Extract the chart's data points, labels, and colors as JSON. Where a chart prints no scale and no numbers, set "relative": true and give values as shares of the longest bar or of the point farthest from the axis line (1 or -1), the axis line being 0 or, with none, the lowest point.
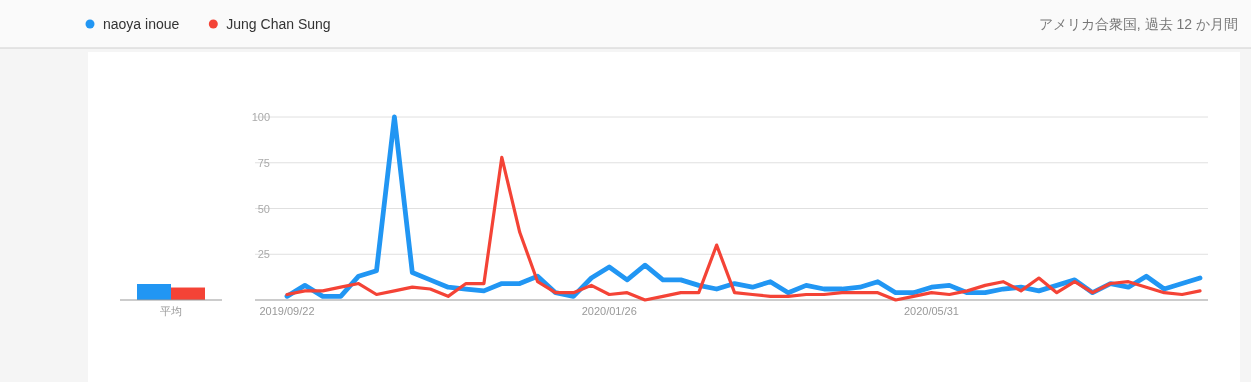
{
  "chart_data": [
    {
      "type": "bar",
      "relative": true,
      "categories": [
        "平均"
      ],
      "series": [
        {
          "color": "#2196f3",
          "values": [
            1
          ]
        },
        {
          "color": "#f44336",
          "values": [
            0.78
          ]
        }
      ]
    },
    {
      "type": "line",
      "legend": "top left",
      "grid": "y",
      "marker": "none",
      "line_style": "solid",
      "annotations": [
        "アメリカ合衆国, 過去 12 か月間"
      ],
      "categories": [
        "2019/09/22",
        null,
        null,
        null,
        null,
        null,
        null,
        null,
        null,
        null,
        null,
        null,
        null,
        null,
        null,
        null,
        null,
        null,
        "2020/01/26",
        null,
        null,
        null,
        null,
        null,
        null,
        null,
        null,
        null,
        null,
        null,
        null,
        null,
        null,
        null,
        null,
        null,
        "2020/05/31",
        null,
        null,
        null,
        null,
        null,
        null,
        null,
        null,
        null,
        null,
        null,
        null,
        null,
        null,
        null
      ],
      "ylim": [
        0,
        100
      ],
      "yticks": [
        {
          "value": 0,
          "label": null
        },
        25,
        50,
        75,
        100
      ],
      "series": [
        {
          "name": "naoya inoue",
          "color": "#2196f3",
          "values": [
            2,
            8,
            2,
            2,
            13,
            16,
            100,
            15,
            11,
            7,
            6,
            5,
            9,
            9,
            13,
            4,
            2,
            12,
            18,
            11,
            19,
            11,
            11,
            8,
            6,
            9,
            7,
            10,
            4,
            8,
            6,
            6,
            7,
            10,
            4,
            4,
            7,
            8,
            4,
            4,
            6,
            7,
            5,
            8,
            11,
            4,
            9,
            7,
            13,
            6,
            9,
            12
          ]
        },
        {
          "name": "Jung Chan Sung",
          "color": "#f44336",
          "values": [
            3,
            5,
            5,
            7,
            9,
            3,
            5,
            7,
            6,
            2,
            9,
            9,
            78,
            37,
            10,
            4,
            4,
            8,
            3,
            4,
            0,
            2,
            4,
            4,
            30,
            4,
            3,
            2,
            2,
            3,
            3,
            4,
            4,
            4,
            0,
            2,
            4,
            3,
            5,
            8,
            10,
            5,
            12,
            4,
            10,
            4,
            9,
            10,
            7,
            4,
            3,
            5
          ]
        }
      ]
    }
  ]
}
